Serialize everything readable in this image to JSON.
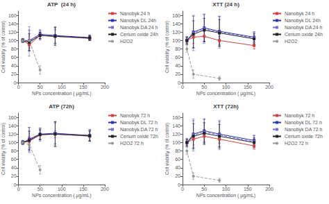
{
  "chart_data": [
    {
      "type": "line",
      "title": "ATP  (24 h)",
      "xlabel": "NPs concentration ( μg/mL)",
      "ylabel": "Cell viability (% of control)",
      "x": [
        10,
        25,
        50,
        85,
        165
      ],
      "xlim": [
        0,
        200
      ],
      "xticks": [
        0,
        50,
        100,
        150,
        200
      ],
      "ylim": [
        0,
        170
      ],
      "yticks": [
        0,
        20,
        40,
        60,
        80,
        100,
        120,
        140,
        160
      ],
      "grid": false,
      "legend": "right",
      "series": [
        {
          "name": "Nanobyk 24 h",
          "color": "#d04040",
          "marker": "square",
          "line_style": "solid",
          "values": [
            100,
            90,
            112,
            110,
            105
          ],
          "errors": [
            3,
            8,
            8,
            15,
            5
          ]
        },
        {
          "name": "Nanobyk DL 24h",
          "color": "#3030b0",
          "marker": "square",
          "line_style": "solid",
          "values": [
            100,
            100,
            115,
            112,
            107
          ],
          "errors": [
            4,
            25,
            10,
            20,
            6
          ]
        },
        {
          "name": "Nanobyk DA 24 h",
          "color": "#7070d0",
          "marker": "square",
          "line_style": "dashed",
          "values": [
            100,
            98,
            113,
            110,
            106
          ],
          "errors": [
            5,
            35,
            12,
            18,
            5
          ]
        },
        {
          "name": "Cerium oxide 24h",
          "color": "#202020",
          "marker": "square",
          "line_style": "solid",
          "values": [
            100,
            96,
            112,
            110,
            106
          ],
          "errors": [
            4,
            20,
            8,
            22,
            6
          ]
        },
        {
          "name": "H2O2",
          "color": "#999999",
          "marker": "circle",
          "line_style": "dashed",
          "values": [
            100,
            100,
            30,
            null,
            null
          ],
          "errors": [
            3,
            8,
            10,
            null,
            null
          ]
        }
      ]
    },
    {
      "type": "line",
      "title": "XTT (24 h)",
      "xlabel": "NPs concentration ( μg/mL)",
      "ylabel": "Cell viability (% of control)",
      "x": [
        10,
        25,
        50,
        85,
        165
      ],
      "xlim": [
        0,
        200
      ],
      "xticks": [
        0,
        50,
        100,
        150,
        200
      ],
      "ylim": [
        0,
        170
      ],
      "yticks": [
        0,
        20,
        40,
        60,
        80,
        100,
        120,
        140,
        160
      ],
      "grid": false,
      "legend": "right",
      "series": [
        {
          "name": "Nanobyk 24 h",
          "color": "#d04040",
          "marker": "square",
          "line_style": "solid",
          "values": [
            100,
            108,
            110,
            100,
            88
          ],
          "errors": [
            5,
            15,
            12,
            10,
            8
          ]
        },
        {
          "name": "Nanobyk DL 24h",
          "color": "#3030b0",
          "marker": "square",
          "line_style": "solid",
          "values": [
            100,
            120,
            130,
            122,
            108
          ],
          "errors": [
            8,
            38,
            32,
            35,
            12
          ]
        },
        {
          "name": "Nanobyk DA 24 h",
          "color": "#7070d0",
          "marker": "square",
          "line_style": "dashed",
          "values": [
            100,
            118,
            128,
            120,
            106
          ],
          "errors": [
            10,
            42,
            35,
            38,
            15
          ]
        },
        {
          "name": "Cerium oxide 24h",
          "color": "#202020",
          "marker": "square",
          "line_style": "solid",
          "values": [
            100,
            115,
            125,
            118,
            104
          ],
          "errors": [
            8,
            32,
            28,
            32,
            12
          ]
        },
        {
          "name": "H2O2",
          "color": "#999999",
          "marker": "circle",
          "line_style": "dashed",
          "values": [
            80,
            20,
            null,
            10,
            null
          ],
          "errors": [
            8,
            10,
            null,
            5,
            null
          ]
        }
      ]
    },
    {
      "type": "line",
      "title": "ATP (72h)",
      "xlabel": "NPs concentration ( μg/mL)",
      "ylabel": "Cell viability (% of control)",
      "x": [
        10,
        25,
        50,
        85,
        165
      ],
      "xlim": [
        0,
        200
      ],
      "xticks": [
        0,
        50,
        100,
        150,
        200
      ],
      "ylim": [
        0,
        170
      ],
      "yticks": [
        0,
        20,
        40,
        60,
        80,
        100,
        120,
        140,
        160
      ],
      "grid": false,
      "legend": "right",
      "series": [
        {
          "name": "Nanobyk 72 h",
          "color": "#d04040",
          "marker": "square",
          "line_style": "solid",
          "values": [
            100,
            103,
            118,
            120,
            115
          ],
          "errors": [
            3,
            10,
            10,
            8,
            12
          ]
        },
        {
          "name": "Nanobyk DL 72 h",
          "color": "#3030b0",
          "marker": "square",
          "line_style": "solid",
          "values": [
            100,
            108,
            120,
            122,
            117
          ],
          "errors": [
            4,
            28,
            14,
            25,
            14
          ]
        },
        {
          "name": "Nanobyk DA 72 h",
          "color": "#7070d0",
          "marker": "square",
          "line_style": "dashed",
          "values": [
            100,
            106,
            119,
            121,
            116
          ],
          "errors": [
            5,
            30,
            16,
            28,
            12
          ]
        },
        {
          "name": "Cerium oxide 72h",
          "color": "#202020",
          "marker": "square",
          "line_style": "solid",
          "values": [
            100,
            105,
            119,
            120,
            116
          ],
          "errors": [
            4,
            22,
            12,
            30,
            12
          ]
        },
        {
          "name": "H2O2 72 h",
          "color": "#999999",
          "marker": "circle",
          "line_style": "dashed",
          "values": [
            100,
            95,
            35,
            null,
            null
          ],
          "errors": [
            3,
            8,
            10,
            null,
            null
          ]
        }
      ]
    },
    {
      "type": "line",
      "title": "XTT (72h)",
      "xlabel": "NPs concentration ( μg/mL)",
      "ylabel": "Cell viability (% of control)",
      "x": [
        10,
        25,
        50,
        85,
        165
      ],
      "xlim": [
        0,
        200
      ],
      "xticks": [
        0,
        50,
        100,
        150,
        200
      ],
      "ylim": [
        0,
        170
      ],
      "yticks": [
        0,
        20,
        40,
        60,
        80,
        100,
        120,
        140,
        160
      ],
      "grid": false,
      "legend": "right",
      "series": [
        {
          "name": "Nanobyk 72 h",
          "color": "#d04040",
          "marker": "square",
          "line_style": "solid",
          "values": [
            100,
            108,
            115,
            108,
            92
          ],
          "errors": [
            5,
            14,
            12,
            10,
            8
          ]
        },
        {
          "name": "Nanobyk DL 72 h",
          "color": "#3030b0",
          "marker": "square",
          "line_style": "solid",
          "values": [
            100,
            120,
            128,
            120,
            105
          ],
          "errors": [
            8,
            32,
            28,
            30,
            12
          ]
        },
        {
          "name": "Nanobyk DA 72 h",
          "color": "#7070d0",
          "marker": "square",
          "line_style": "dashed",
          "values": [
            100,
            118,
            125,
            118,
            102
          ],
          "errors": [
            10,
            38,
            30,
            35,
            15
          ]
        },
        {
          "name": "Cerium oxide 72h",
          "color": "#202020",
          "marker": "square",
          "line_style": "solid",
          "values": [
            100,
            115,
            122,
            115,
            100
          ],
          "errors": [
            8,
            30,
            25,
            28,
            11
          ]
        },
        {
          "name": "H2O2 72 h",
          "color": "#999999",
          "marker": "circle",
          "line_style": "dashed",
          "values": [
            80,
            20,
            null,
            10,
            null
          ],
          "errors": [
            8,
            8,
            null,
            5,
            null
          ]
        }
      ]
    }
  ]
}
